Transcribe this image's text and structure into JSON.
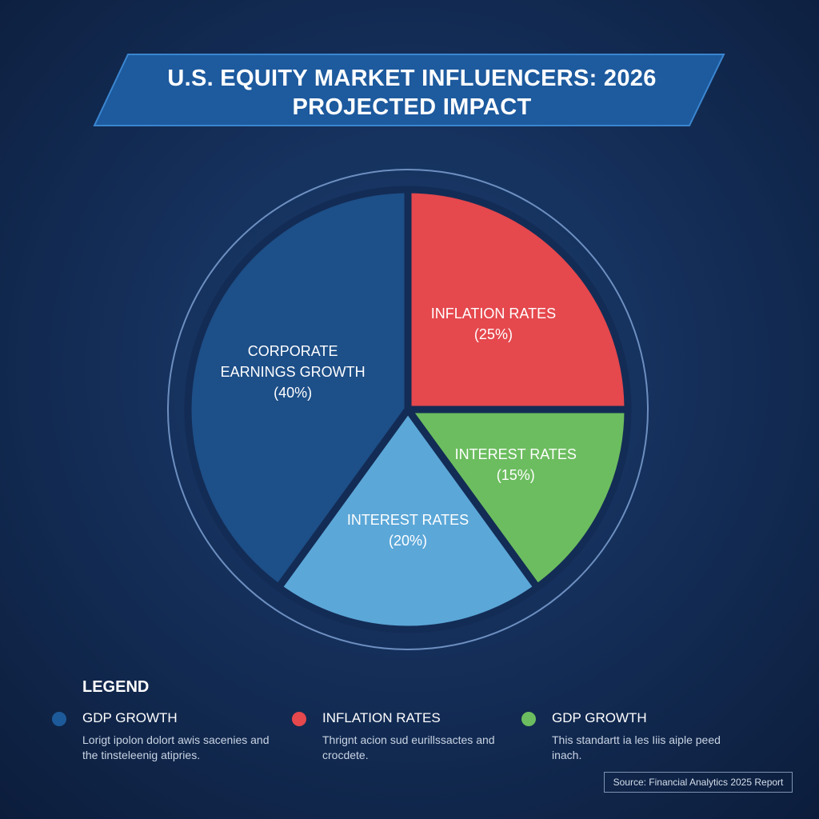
{
  "chart_data": {
    "type": "pie",
    "title": "U.S. EQUITY MARKET INFLUENCERS: 2026 PROJECTED IMPACT",
    "categories": [
      "INFLATION RATES",
      "INTEREST RATES",
      "INTEREST RATES",
      "CORPORATE EARNINGS GROWTH"
    ],
    "values": [
      25,
      15,
      20,
      40
    ],
    "value_labels": [
      "(25%)",
      "(15%)",
      "(20%)",
      "(40%)"
    ],
    "colors": [
      "#e5484d",
      "#6cbd5f",
      "#5ba7d8",
      "#1d4f88"
    ],
    "legend_title": "LEGEND",
    "legend_items": [
      {
        "name": "GDP GROWTH",
        "color": "#1d5a9a",
        "description": "Lorigt ipolon dolort awis sacenies and the tinsteleenig atipries."
      },
      {
        "name": "INFLATION RATES",
        "color": "#e5484d",
        "description": "Thrignt acion sud eurillssactes and crocdete."
      },
      {
        "name": "GDP GROWTH",
        "color": "#6cbd5f",
        "description": "This standartt ia les Iiis aiple peed inach."
      }
    ],
    "source": "Source: Financial Analytics 2025 Report"
  }
}
